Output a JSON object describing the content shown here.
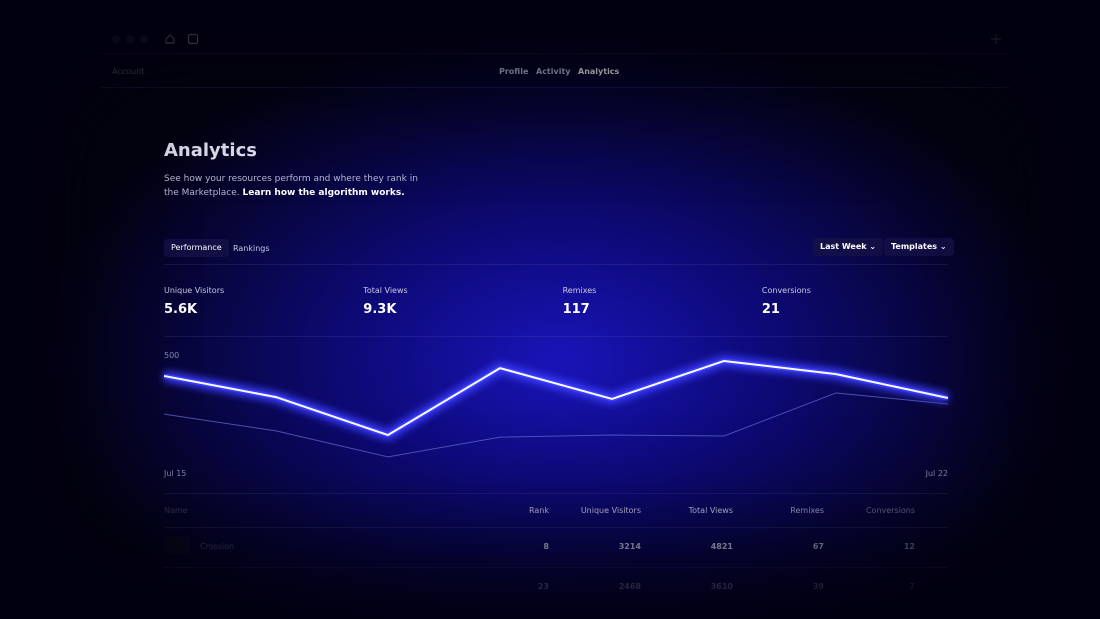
{
  "nav": {
    "account": "Account",
    "items": [
      "Profile",
      "Activity",
      "Analytics"
    ],
    "active": 2
  },
  "header": {
    "title": "Analytics",
    "description": "See how your resources perform and where they rank in the Marketplace.",
    "link": "Learn how the algorithm works."
  },
  "tabs": {
    "items": [
      "Performance",
      "Rankings"
    ],
    "active": 0
  },
  "filters": [
    "Last Week",
    "Templates"
  ],
  "stats": [
    {
      "label": "Unique Visitors",
      "value": "5.6K"
    },
    {
      "label": "Total Views",
      "value": "9.3K"
    },
    {
      "label": "Remixes",
      "value": "117"
    },
    {
      "label": "Conversions",
      "value": "21"
    }
  ],
  "chart_data": {
    "type": "line",
    "categories": [
      "Jul 15",
      null,
      null,
      null,
      null,
      null,
      null,
      "Jul 22"
    ],
    "series": [
      {
        "color": "#ffffff",
        "glow_color": "#3a3eff",
        "values": [
          409,
          317,
          152,
          443,
          309,
          474,
          417,
          313
        ]
      },
      {
        "color": "#5f63c8",
        "values": [
          243,
          170,
          57,
          143,
          152,
          148,
          335,
          287
        ]
      }
    ],
    "ylim": [
      0,
      500
    ],
    "yticks": [
      500
    ],
    "grid": false
  },
  "table": {
    "columns": [
      "Name",
      "Rank",
      "Unique Visitors",
      "Total Views",
      "Remixes",
      "Conversions"
    ],
    "rows": [
      [
        "Crossion",
        "8",
        "3214",
        "4821",
        "67",
        "12"
      ],
      [
        null,
        "23",
        "2468",
        "3610",
        "39",
        "7"
      ]
    ]
  }
}
